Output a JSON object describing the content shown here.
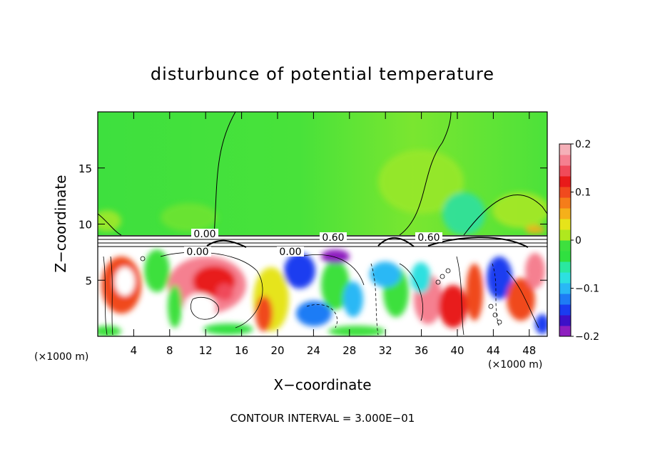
{
  "chart_data": {
    "type": "heatmap",
    "title": "disturbunce of potential temperature",
    "xlabel": "X−coordinate",
    "ylabel": "Z−coordinate",
    "x_unit_left": "(×1000 m)",
    "x_unit_right": "(×1000 m)",
    "xlim": [
      0,
      50
    ],
    "ylim": [
      0,
      20
    ],
    "x_ticks": [
      "4",
      "8",
      "12",
      "16",
      "20",
      "24",
      "28",
      "32",
      "36",
      "40",
      "44",
      "48"
    ],
    "y_ticks": [
      "5",
      "10",
      "15"
    ],
    "colorbar": {
      "range": [
        -0.2,
        0.2
      ],
      "ticks": [
        "0.2",
        "0.1",
        "0",
        "−0.1",
        "−0.2"
      ],
      "colors": [
        "#8e1fbf",
        "#3d10c8",
        "#1a3cf0",
        "#1e7cf5",
        "#29b8f5",
        "#2de0e0",
        "#2ae8a0",
        "#30e040",
        "#3ee03e",
        "#b0e81e",
        "#e6e41a",
        "#f5b01a",
        "#f57d1a",
        "#f04a1e",
        "#e81a1a",
        "#f04a5a",
        "#f58090",
        "#f5b0b8"
      ]
    },
    "contour_labels": [
      "0.00",
      "0.00",
      "0.60",
      "0.60",
      "0.00"
    ],
    "footnote": "CONTOUR INTERVAL = 3.000E−01"
  }
}
